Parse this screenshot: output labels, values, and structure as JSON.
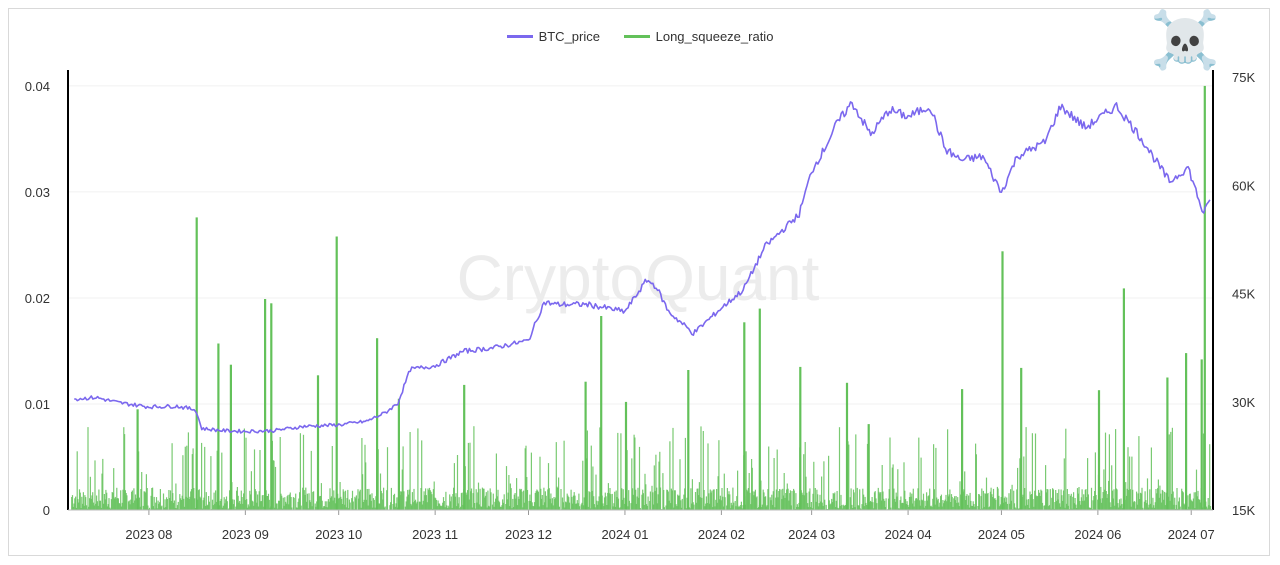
{
  "legend": {
    "btc_label": "BTC_price",
    "ratio_label": "Long_squeeze_ratio",
    "btc_color": "#7b68ee",
    "ratio_color": "#63c15a"
  },
  "watermark": "CryptoQuant",
  "icon": {
    "name": "skull-crossbones-icon",
    "glyph": "☠️"
  },
  "chart_data": {
    "type": "line",
    "x_ticks": [
      "2023 08",
      "2023 09",
      "2023 10",
      "2023 11",
      "2023 12",
      "2024 01",
      "2024 02",
      "2024 03",
      "2024 04",
      "2024 05",
      "2024 06",
      "2024 07"
    ],
    "y_left": {
      "ticks": [
        "0",
        "0.01",
        "0.02",
        "0.03",
        "0.04"
      ],
      "range": [
        0,
        0.0415
      ]
    },
    "y_right": {
      "ticks": [
        "15K",
        "30K",
        "45K",
        "60K",
        "75K"
      ],
      "range": [
        15000,
        76000
      ]
    },
    "series": [
      {
        "name": "BTC_price",
        "axis": "right",
        "x": [
          "2023-07-08",
          "2023-07-15",
          "2023-07-22",
          "2023-08-01",
          "2023-08-10",
          "2023-08-16",
          "2023-08-18",
          "2023-08-25",
          "2023-09-01",
          "2023-09-10",
          "2023-09-20",
          "2023-10-01",
          "2023-10-10",
          "2023-10-16",
          "2023-10-20",
          "2023-10-24",
          "2023-11-01",
          "2023-11-10",
          "2023-11-20",
          "2023-12-01",
          "2023-12-06",
          "2023-12-10",
          "2023-12-20",
          "2024-01-01",
          "2024-01-08",
          "2024-01-11",
          "2024-01-15",
          "2024-01-23",
          "2024-02-01",
          "2024-02-08",
          "2024-02-15",
          "2024-02-26",
          "2024-03-01",
          "2024-03-05",
          "2024-03-09",
          "2024-03-14",
          "2024-03-20",
          "2024-03-26",
          "2024-04-01",
          "2024-04-08",
          "2024-04-13",
          "2024-04-18",
          "2024-04-25",
          "2024-05-01",
          "2024-05-06",
          "2024-05-15",
          "2024-05-20",
          "2024-05-28",
          "2024-06-07",
          "2024-06-15",
          "2024-06-24",
          "2024-06-30",
          "2024-07-05",
          "2024-07-07"
        ],
        "y": [
          30400,
          30600,
          29900,
          29300,
          29400,
          28900,
          26300,
          26000,
          25900,
          26000,
          26600,
          26800,
          27300,
          28500,
          29800,
          34500,
          35000,
          37000,
          37500,
          38500,
          43800,
          43500,
          43500,
          42500,
          46900,
          46000,
          42500,
          39500,
          43000,
          45500,
          51500,
          56000,
          62000,
          65000,
          68500,
          71500,
          67000,
          70500,
          69500,
          71000,
          65000,
          63500,
          64000,
          59000,
          64000,
          66000,
          71000,
          68000,
          71000,
          66500,
          60500,
          62500,
          56000,
          58000
        ]
      },
      {
        "name": "Long_squeeze_ratio",
        "axis": "left",
        "type": "bar",
        "spikes_x": [
          "2023-07-28",
          "2023-08-16",
          "2023-08-23",
          "2023-08-27",
          "2023-09-07",
          "2023-09-09",
          "2023-09-24",
          "2023-09-30",
          "2023-10-13",
          "2023-10-20",
          "2023-11-10",
          "2023-12-19",
          "2023-12-24",
          "2024-01-01",
          "2024-01-21",
          "2024-02-08",
          "2024-02-13",
          "2024-02-26",
          "2024-03-12",
          "2024-03-19",
          "2024-04-18",
          "2024-05-01",
          "2024-05-07",
          "2024-06-01",
          "2024-06-09",
          "2024-06-23",
          "2024-06-29",
          "2024-07-04",
          "2024-07-05"
        ],
        "spikes_y": [
          0.0095,
          0.0276,
          0.0157,
          0.0137,
          0.0199,
          0.0195,
          0.0127,
          0.0258,
          0.0162,
          0.0105,
          0.0118,
          0.0121,
          0.0183,
          0.0102,
          0.0132,
          0.0177,
          0.019,
          0.0135,
          0.012,
          0.0081,
          0.0114,
          0.0244,
          0.0134,
          0.0113,
          0.0209,
          0.0125,
          0.0148,
          0.0142,
          0.04
        ]
      }
    ],
    "grid": true
  }
}
